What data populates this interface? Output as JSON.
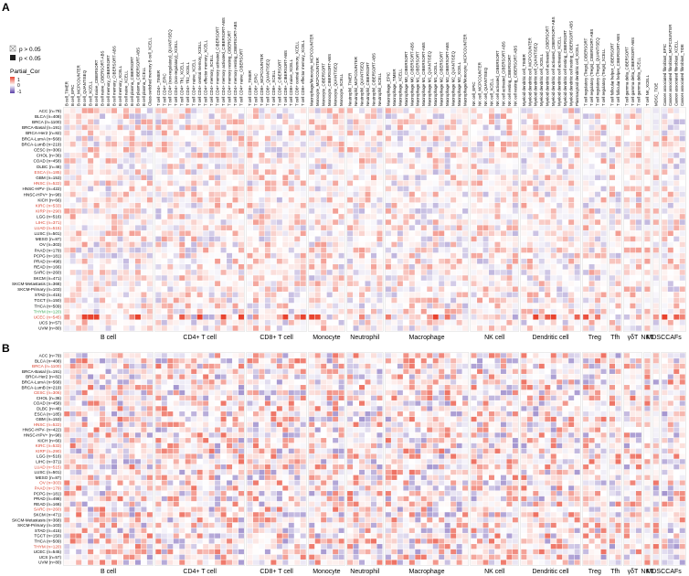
{
  "panels": [
    {
      "label": "A"
    },
    {
      "label": "B"
    }
  ],
  "legend": {
    "sig_symbol": "⊠",
    "sig_text_1": "p > 0.05",
    "sig_text_2": "p < 0.05",
    "title": "Partial_Cor",
    "ticks": [
      "1",
      "0",
      "-1"
    ],
    "colors": {
      "positive": "#e8432f",
      "zero": "#ffffff",
      "negative": "#5a3fa8"
    }
  },
  "chart_data": [
    {
      "type": "heatmap",
      "panel": "A",
      "color_range": [
        -1,
        1
      ],
      "groups": [
        "B cell",
        "CD4+ T cell",
        "CD8+ T cell",
        "Monocyte",
        "Neutrophil",
        "Macrophage",
        "NK cell",
        "Dendritic cell",
        "Treg",
        "Tfh",
        "γδT",
        "NKT",
        "MDSC",
        "CAFs"
      ],
      "columns": [
        "B cell_TIMER",
        "B cell_EPIC",
        "B cell_MCPCOUNTER",
        "B cell_QUANTISEQ",
        "B cell_XCELL",
        "B cell naive_CIBERSORT",
        "B cell naive_CIBERSORT-ABS",
        "B cell memory_CIBERSORT",
        "B cell memory_CIBERSORT-ABS",
        "B cell memory_XCELL",
        "B cell naive_XCELL",
        "B cell plasma_CIBERSORT",
        "B cell plasma_CIBERSORT-ABS",
        "B cell plasma_XCELL",
        "Class-switched memory B cell_XCELL",
        "T cell CD4+_TIMER",
        "T cell CD4+_EPIC",
        "T cell CD4+ (non-regulatory)_QUANTISEQ",
        "T cell CD4+ (non-regulatory)_XCELL",
        "T cell CD4+ Th1_XCELL",
        "T cell CD4+ Th2_XCELL",
        "T cell CD4+ naive_XCELL",
        "T cell CD4+ central memory_XCELL",
        "T cell CD4+ effector memory_XCELL",
        "T cell CD4+ memory_XCELL",
        "T cell CD4+ memory activated_CIBERSORT",
        "T cell CD4+ memory activated_CIBERSORT-ABS",
        "T cell CD4+ memory resting_CIBERSORT",
        "T cell CD4+ memory resting_CIBERSORT-ABS",
        "T cell CD4+ naive_CIBERSORT",
        "T cell CD8+_TIMER",
        "T cell CD8+_EPIC",
        "T cell CD8+_MCPCOUNTER",
        "T cell CD8+_QUANTISEQ",
        "T cell CD8+_XCELL",
        "T cell CD8+_CIBERSORT",
        "T cell CD8+_CIBERSORT-ABS",
        "T cell CD8+ naive_XCELL",
        "T cell CD8+ central memory_XCELL",
        "T cell CD8+ effector memory_XCELL",
        "Macrophage/Monocyte_MCPCOUNTER",
        "Monocyte_MCPCOUNTER",
        "Monocyte_CIBERSORT",
        "Monocyte_CIBERSORT-ABS",
        "Monocyte_QUANTISEQ",
        "Monocyte_XCELL",
        "Neutrophil_TIMER",
        "Neutrophil_MCPCOUNTER",
        "Neutrophil_QUANTISEQ",
        "Neutrophil_CIBERSORT",
        "Neutrophil_CIBERSORT-ABS",
        "Neutrophil_XCELL",
        "Macrophage_EPIC",
        "Macrophage_TIMER",
        "Macrophage_XCELL",
        "Macrophage M0_CIBERSORT",
        "Macrophage M0_CIBERSORT-ABS",
        "Macrophage M1_CIBERSORT",
        "Macrophage M1_CIBERSORT-ABS",
        "Macrophage M1_QUANTISEQ",
        "Macrophage M1_XCELL",
        "Macrophage M2_CIBERSORT",
        "Macrophage M2_CIBERSORT-ABS",
        "Macrophage M2_QUANTISEQ",
        "Macrophage M2_XCELL",
        "Macrophage/Monocyte_MCPCOUNTER",
        "NK cell_EPIC",
        "NK cell_MCPCOUNTER",
        "NK cell_QUANTISEQ",
        "NK cell_XCELL",
        "NK cell activated_CIBERSORT",
        "NK cell activated_CIBERSORT-ABS",
        "NK cell resting_CIBERSORT",
        "NK cell resting_CIBERSORT-ABS",
        "Myeloid dendritic cell_TIMER",
        "Myeloid dendritic cell_MCPCOUNTER",
        "Myeloid dendritic cell_QUANTISEQ",
        "Myeloid dendritic cell_XCELL",
        "Myeloid dendritic cell activated_CIBERSORT",
        "Myeloid dendritic cell activated_CIBERSORT-ABS",
        "Myeloid dendritic cell activated_XCELL",
        "Myeloid dendritic cell resting_CIBERSORT",
        "Myeloid dendritic cell resting_CIBERSORT-ABS",
        "Plasmacytoid dendritic cell_XCELL",
        "T cell regulatory (Tregs)_CIBERSORT",
        "T cell regulatory (Tregs)_CIBERSORT-ABS",
        "T cell regulatory (Tregs)_QUANTISEQ",
        "T cell regulatory (Tregs)_XCELL",
        "T cell follicular helper_CIBERSORT",
        "T cell follicular helper_CIBERSORT-ABS",
        "T cell gamma delta_CIBERSORT",
        "T cell gamma delta_CIBERSORT-ABS",
        "T cell gamma delta_XCELL",
        "T cell NK_XCELL",
        "MDSC_TIDE",
        "Cancer associated fibroblast_EPIC",
        "Cancer associated fibroblast_MCPCOUNTER",
        "Cancer associated fibroblast_XCELL",
        "Cancer associated fibroblast_TIDE"
      ],
      "group_sizes": [
        15,
        15,
        10,
        6,
        6,
        14,
        8,
        10,
        4,
        2,
        3,
        1,
        1,
        4
      ],
      "rows": [
        "ACC (n=79)",
        "BLCA (n=408)",
        "BRCA (n=1100)",
        "BRCA-Basal (n=191)",
        "BRCA-Her2 (n=82)",
        "BRCA-LumA (n=568)",
        "BRCA-LumB (n=219)",
        "CESC (n=306)",
        "CHOL (n=36)",
        "COAD (n=458)",
        "DLBC (n=48)",
        "ESCA (n=185)",
        "GBM (n=153)",
        "HNSC (n=522)",
        "HNSC-HPV- (n=422)",
        "HNSC-HPV+ (n=98)",
        "KICH (n=66)",
        "KIRC (n=533)",
        "KIRP (n=290)",
        "LGG (n=516)",
        "LIHC (n=371)",
        "LUAD (n=515)",
        "LUSC (n=501)",
        "MESO (n=87)",
        "OV (n=303)",
        "PAAD (n=179)",
        "PCPG (n=181)",
        "PRAD (n=498)",
        "READ (n=166)",
        "SARC (n=260)",
        "SKCM (n=471)",
        "SKCM-Metastasis (n=368)",
        "SKCM-Primary (n=103)",
        "STAD (n=415)",
        "TGCT (n=150)",
        "THCA (n=509)",
        "THYM (n=120)",
        "UCEC (n=545)",
        "UCS (n=57)",
        "UVM (n=80)"
      ],
      "highlighted_rows": {
        "ESCA (n=185)": "#d9432f",
        "HNSC (n=522)": "#d9432f",
        "KIRC (n=533)": "#d9432f",
        "KIRP (n=290)": "#d9432f",
        "LIHC (n=371)": "#d9432f",
        "LUAD (n=515)": "#d9432f",
        "THYM (n=120)": "#3aa655",
        "UCEC (n=545)": "#d9432f"
      }
    },
    {
      "type": "heatmap",
      "panel": "B",
      "color_range": [
        -1,
        1
      ],
      "groups": [
        "B cell",
        "CD4+ T cell",
        "CD8+ T cell",
        "Monocyte",
        "Neutrophil",
        "Macrophage",
        "NK cell",
        "Dendritic cell",
        "Treg",
        "Tfh",
        "γδT",
        "NKT",
        "MDSC",
        "CAFs"
      ],
      "group_sizes": [
        15,
        15,
        10,
        6,
        6,
        14,
        8,
        10,
        4,
        2,
        3,
        1,
        1,
        4
      ],
      "rows": [
        "ACC (n=79)",
        "BLCA (n=408)",
        "BRCA (n=1100)",
        "BRCA-Basal (n=191)",
        "BRCA-Her2 (n=82)",
        "BRCA-LumA (n=568)",
        "BRCA-LumB (n=219)",
        "CESC (n=306)",
        "CHOL (n=36)",
        "COAD (n=458)",
        "DLBC (n=48)",
        "ESCA (n=185)",
        "GBM (n=153)",
        "HNSC (n=522)",
        "HNSC-HPV- (n=422)",
        "HNSC-HPV+ (n=98)",
        "KICH (n=66)",
        "KIRC (n=533)",
        "KIRP (n=290)",
        "LGG (n=516)",
        "LIHC (n=371)",
        "LUAD (n=515)",
        "LUSC (n=501)",
        "MESO (n=87)",
        "OV (n=303)",
        "PAAD (n=179)",
        "PCPG (n=181)",
        "PRAD (n=498)",
        "READ (n=166)",
        "SARC (n=260)",
        "SKCM (n=471)",
        "SKCM-Metastasis (n=368)",
        "SKCM-Primary (n=103)",
        "STAD (n=415)",
        "TGCT (n=150)",
        "THCA (n=509)",
        "THYM (n=120)",
        "UCEC (n=545)",
        "UCS (n=57)",
        "UVM (n=80)"
      ],
      "highlighted_rows": {
        "BRCA (n=1100)": "#d9432f",
        "CESC (n=306)": "#d9432f",
        "HNSC (n=522)": "#d9432f",
        "KIRC (n=533)": "#d9432f",
        "KIRP (n=290)": "#d9432f",
        "LUAD (n=515)": "#d9432f",
        "OV (n=303)": "#d9432f",
        "PAAD (n=179)": "#d9432f",
        "SARC (n=260)": "#d9432f",
        "THYM (n=120)": "#d9432f"
      }
    }
  ]
}
